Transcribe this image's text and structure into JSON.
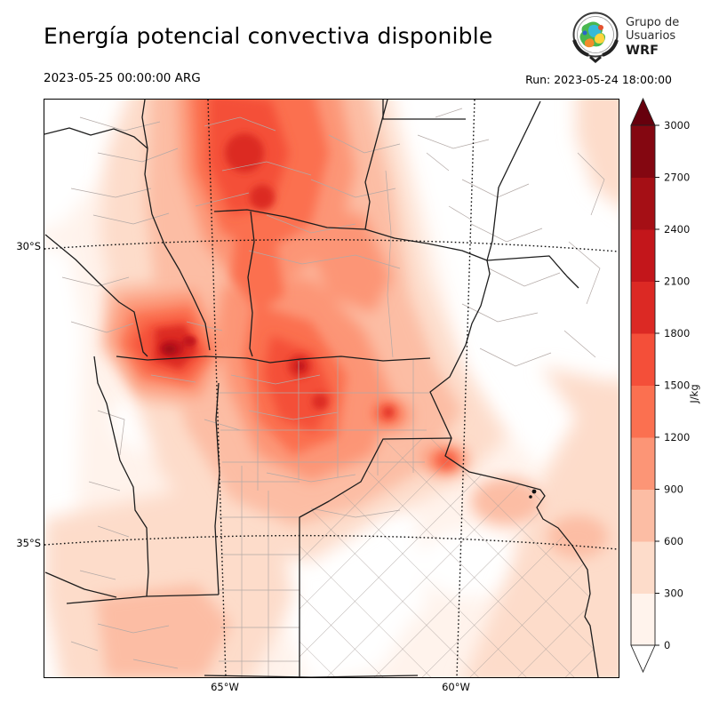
{
  "header": {
    "title": "Energía potencial convectiva disponible",
    "logo": {
      "line1": "Grupo de",
      "line2": "Usuarios",
      "line3": "WRF"
    }
  },
  "subheader": {
    "valid_time": "2023-05-25 00:00:00 ARG",
    "run": "Run: 2023-05-24 18:00:00"
  },
  "map": {
    "lat_labels": [
      "30°S",
      "35°S"
    ],
    "lon_labels": [
      "65°W",
      "60°W"
    ]
  },
  "colorbar": {
    "unit": "J/kg",
    "ticks": [
      "0",
      "300",
      "600",
      "900",
      "1200",
      "1500",
      "1800",
      "2100",
      "2400",
      "2700",
      "3000"
    ],
    "palette": [
      "#fff3ec",
      "#fddcca",
      "#fcbda4",
      "#fc9576",
      "#fb7050",
      "#f44f39",
      "#dc2924",
      "#c3161b",
      "#a50f15",
      "#840711"
    ],
    "over_color": "#67000d",
    "under_color": "#ffffff",
    "outline_color": "#222222"
  },
  "chart_data": {
    "type": "heatmap",
    "title": "Energía potencial convectiva disponible",
    "unit": "J/kg",
    "levels": [
      0,
      300,
      600,
      900,
      1200,
      1500,
      1800,
      2100,
      2400,
      2700,
      3000
    ],
    "extend": "both",
    "valid_time": "2023-05-25 00:00:00 ARG",
    "run_time": "2023-05-24 18:00:00",
    "lat_gridlines": [
      "30°S",
      "35°S"
    ],
    "lon_gridlines": [
      "65°W",
      "60°W"
    ],
    "legend_position": "right"
  }
}
